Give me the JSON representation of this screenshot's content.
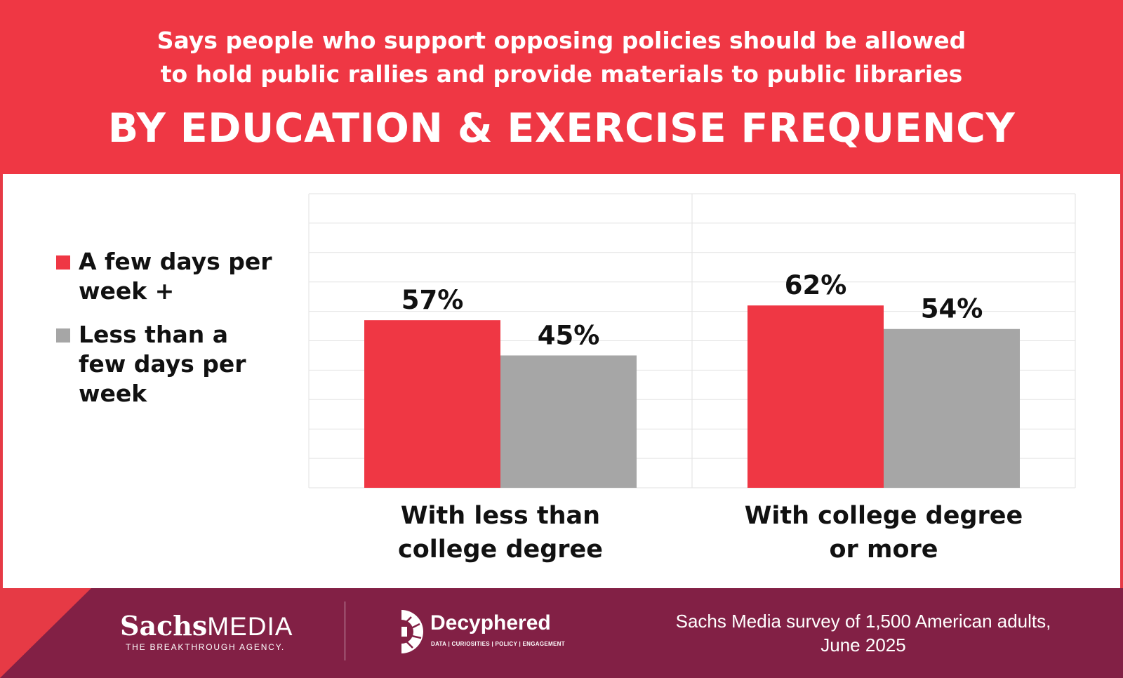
{
  "header": {
    "subtitle_line1": "Says people who support opposing policies should be allowed",
    "subtitle_line2": "to hold public rallies and provide materials to public libraries",
    "title": "BY EDUCATION & EXERCISE FREQUENCY"
  },
  "colors": {
    "header_bg": "#ef3744",
    "footer_bg": "#822045",
    "series_red": "#ef3744",
    "series_gray": "#a6a6a6"
  },
  "chart_data": {
    "type": "bar",
    "categories": [
      [
        "With less than",
        "college degree"
      ],
      [
        "With college degree",
        "or more"
      ]
    ],
    "series": [
      {
        "name": "A few days per week +",
        "values": [
          57,
          62
        ],
        "labels": [
          "57%",
          "62%"
        ],
        "color": "#ef3744"
      },
      {
        "name": "Less than a few days per week",
        "values": [
          45,
          54
        ],
        "labels": [
          "45%",
          "54%"
        ],
        "color": "#a6a6a6"
      }
    ],
    "ylim": [
      0,
      100
    ],
    "grid": true,
    "legend_position": "left"
  },
  "legend": [
    {
      "label": "A few days per week +",
      "icon": "red-square-icon"
    },
    {
      "label": "Less than a few days per week",
      "icon": "gray-square-icon"
    }
  ],
  "footer": {
    "logo1_bold": "Sachs",
    "logo1_rest": "MEDIA",
    "logo1_tagline": "THE BREAKTHROUGH AGENCY.",
    "logo2_name": "Decyphered",
    "logo2_tagline": "DATA | CURIOSITIES | POLICY | ENGAGEMENT",
    "source_line1": "Sachs Media survey of 1,500 American adults,",
    "source_line2": "June 2025"
  }
}
